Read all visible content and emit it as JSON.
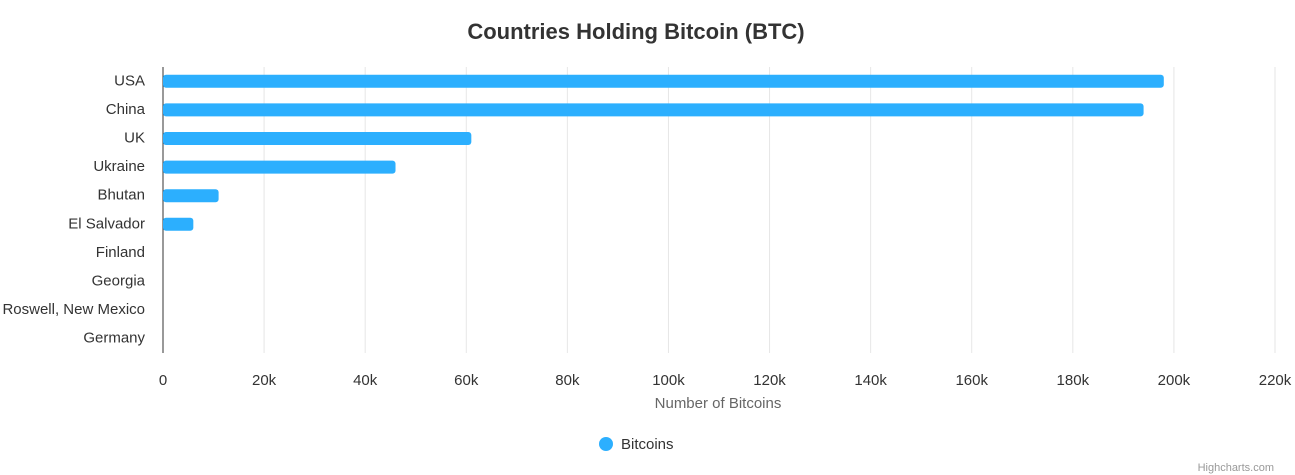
{
  "chart_data": {
    "type": "bar",
    "orientation": "horizontal",
    "title": "Countries Holding Bitcoin (BTC)",
    "categories": [
      "USA",
      "China",
      "UK",
      "Ukraine",
      "Bhutan",
      "El Salvador",
      "Finland",
      "Georgia",
      "Roswell, New Mexico",
      "Germany"
    ],
    "series": [
      {
        "name": "Bitcoins",
        "color": "#2caffe",
        "values": [
          198000,
          194000,
          61000,
          46000,
          11000,
          6000,
          0,
          0,
          0,
          0
        ]
      }
    ],
    "xlabel": "Number of Bitcoins",
    "xlim": [
      0,
      220000
    ],
    "xticks": [
      0,
      {
        "value": 20000,
        "label": "20k"
      },
      {
        "value": 40000,
        "label": "40k"
      },
      {
        "value": 60000,
        "label": "60k"
      },
      {
        "value": 80000,
        "label": "80k"
      },
      {
        "value": 100000,
        "label": "100k"
      },
      {
        "value": 120000,
        "label": "120k"
      },
      {
        "value": 140000,
        "label": "140k"
      },
      {
        "value": 160000,
        "label": "160k"
      },
      {
        "value": 180000,
        "label": "180k"
      },
      {
        "value": 200000,
        "label": "200k"
      },
      {
        "value": 220000,
        "label": "220k"
      }
    ],
    "grid": true,
    "legend": "bottom",
    "credits": "Highcharts.com"
  }
}
